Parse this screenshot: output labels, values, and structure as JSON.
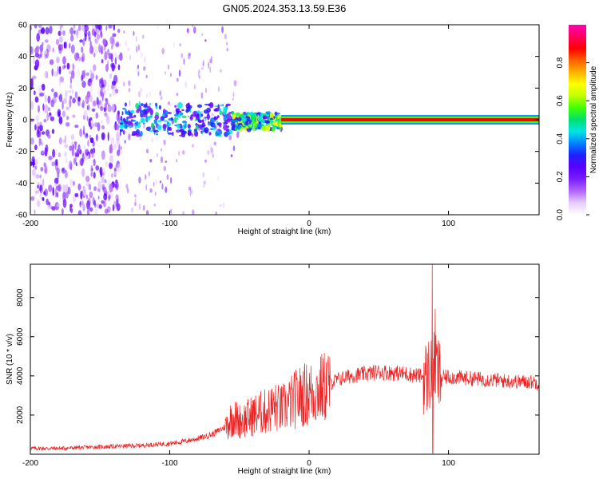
{
  "title": "GN05.2024.353.13.59.E36",
  "colors": {
    "snr_line": "#ee2222",
    "colormap": [
      "#ffffff",
      "#e6ccff",
      "#b266ff",
      "#7a1fff",
      "#5a00ff",
      "#2020ff",
      "#0080ff",
      "#00e5e5",
      "#00e070",
      "#40ff00",
      "#c0ff00",
      "#ffff00",
      "#ffb000",
      "#ff6000",
      "#ff0000",
      "#ff0060",
      "#ff00b0"
    ]
  },
  "chart_data": [
    {
      "type": "heatmap",
      "xlabel": "Height of straight line (km)",
      "ylabel": "Frequency (Hz)",
      "xlim": [
        -200,
        165
      ],
      "ylim": [
        -60,
        60
      ],
      "x_ticks": [
        "-200",
        "-100",
        "0",
        "100"
      ],
      "y_ticks": [
        "-60",
        "-40",
        "-20",
        "0",
        "20",
        "40",
        "60"
      ],
      "colorbar": {
        "label": "Normalized spectral amplitude",
        "range": [
          0,
          1
        ],
        "ticks": [
          "0.0",
          "0.2",
          "0.4",
          "0.6",
          "0.8"
        ]
      },
      "features": [
        {
          "x_range": [
            -200,
            -135
          ],
          "freq_range": [
            -60,
            60
          ],
          "amplitude": 0.15
        },
        {
          "x_range": [
            -135,
            -55
          ],
          "freq_range": [
            -10,
            10
          ],
          "amplitude": 0.35
        },
        {
          "x_range": [
            -55,
            -20
          ],
          "freq_range": [
            -6,
            4
          ],
          "amplitude": 0.5
        },
        {
          "x_range": [
            -20,
            165
          ],
          "freq_range": [
            -1,
            1
          ],
          "amplitude": 0.9
        }
      ]
    },
    {
      "type": "line",
      "xlabel": "Height of straight line (km)",
      "ylabel": "SNR (10 * v/v)",
      "xlim": [
        -200,
        165
      ],
      "ylim": [
        0,
        9700
      ],
      "x_ticks": [
        "-200",
        "-100",
        "0",
        "100"
      ],
      "y_ticks": [
        "2000",
        "4000",
        "6000",
        "8000"
      ],
      "series": [
        {
          "x": [
            -200,
            -180,
            -160,
            -140,
            -120,
            -100,
            -90,
            -80,
            -70,
            -60,
            -55,
            -50,
            -45,
            -40,
            -35,
            -30,
            -25,
            -20,
            -15,
            -10,
            -5,
            0,
            5,
            10,
            15,
            20,
            25,
            30,
            40,
            50,
            60,
            70,
            80,
            85,
            88,
            90,
            92,
            95,
            100,
            110,
            120,
            130,
            140,
            150,
            160,
            165
          ],
          "values": [
            300,
            300,
            350,
            400,
            450,
            550,
            650,
            800,
            1000,
            1400,
            1900,
            1700,
            1800,
            2000,
            2100,
            2200,
            2400,
            2300,
            2500,
            2800,
            3000,
            3100,
            3200,
            3400,
            3600,
            3800,
            3900,
            4000,
            4100,
            4200,
            4150,
            4100,
            4000,
            3900,
            4500,
            5200,
            4100,
            3900,
            3950,
            3900,
            3850,
            3800,
            3750,
            3700,
            3700,
            3650
          ]
        }
      ]
    }
  ]
}
